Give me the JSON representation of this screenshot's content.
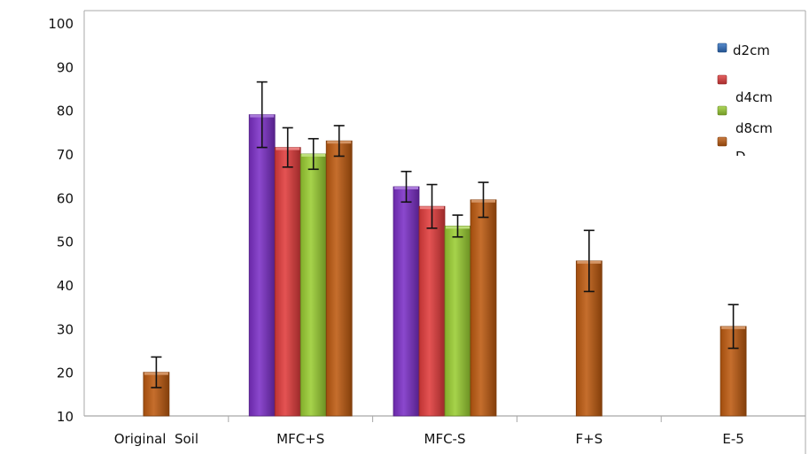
{
  "chart_data": {
    "type": "bar",
    "title": "",
    "xlabel": "",
    "ylabel": "",
    "ylim": [
      10,
      100
    ],
    "yticks": [
      10,
      20,
      30,
      40,
      50,
      60,
      70,
      80,
      90,
      100
    ],
    "categories": [
      "Original  Soil",
      "MFC+S",
      "MFC-S",
      "F+S",
      "E-5"
    ],
    "grid": false,
    "legend_position": "top-right",
    "legend_cut_label": "D",
    "series": [
      {
        "name": "d2cm",
        "color": "#7B2FC6",
        "legend_color": "#2E6FC0",
        "values": [
          null,
          79,
          62.5,
          null,
          null
        ],
        "errors": [
          null,
          7.5,
          3.5,
          null,
          null
        ]
      },
      {
        "name": "d4cm",
        "color": "#E03C3C",
        "legend_color": "#E03C3C",
        "values": [
          null,
          71.5,
          58,
          null,
          null
        ],
        "errors": [
          null,
          4.5,
          5,
          null,
          null
        ]
      },
      {
        "name": "d8cm",
        "color": "#9ACD32",
        "legend_color": "#9ACD32",
        "values": [
          null,
          70,
          53.5,
          null,
          null
        ],
        "errors": [
          null,
          3.5,
          2.5,
          null,
          null
        ]
      },
      {
        "name": "",
        "color": "#BD5A10",
        "legend_color": "#BD5A10",
        "values": [
          20,
          73,
          59.5,
          45.5,
          30.5
        ],
        "errors": [
          3.5,
          3.5,
          4,
          7,
          5
        ]
      }
    ]
  }
}
